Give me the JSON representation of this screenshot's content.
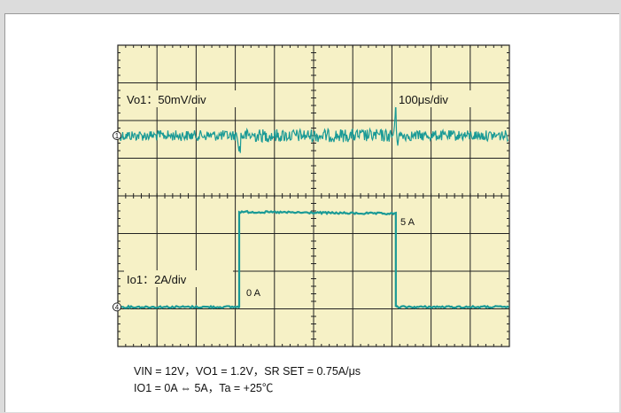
{
  "colors": {
    "screen": "#f6f1c6",
    "grid": "#222222",
    "trace": "#1a9a96",
    "frame_bg": "#ffffff",
    "page_bg": "#dcdcdc"
  },
  "chart_data": {
    "type": "line",
    "title": "",
    "grid": true,
    "divisions": {
      "x": 10,
      "y": 8
    },
    "time_scale": "100μs/div",
    "channels": [
      {
        "label": "Vo1：50mV/div",
        "name": "Vo1",
        "marker": "1",
        "volts_per_div": "50mV/div",
        "baseline_div_from_top": 2.4,
        "noise_div": 0.28,
        "events": [
          {
            "x_div": 3.1,
            "kind": "dip_then_higher_noise",
            "peak_div": 0.32
          },
          {
            "x_div": 7.1,
            "kind": "overshoot_then_recover",
            "peak_div": 0.7
          }
        ]
      },
      {
        "label": "Io1：2A/div",
        "name": "Io1",
        "marker": "4",
        "amps_per_div": "2A/div",
        "baseline_div_from_top": 6.95,
        "x": [
          0,
          3.1,
          3.1,
          7.1,
          7.1,
          10
        ],
        "y_amps": [
          0,
          0,
          5,
          5,
          0,
          0
        ]
      }
    ],
    "annotations": {
      "high_level": "5 A",
      "low_level": "0 A"
    }
  },
  "caption": {
    "line1": "VIN = 12V，VO1 = 1.2V，SR SET = 0.75A/μs",
    "line2": "IO1 = 0A ⇔ 5A，Ta = +25℃"
  }
}
